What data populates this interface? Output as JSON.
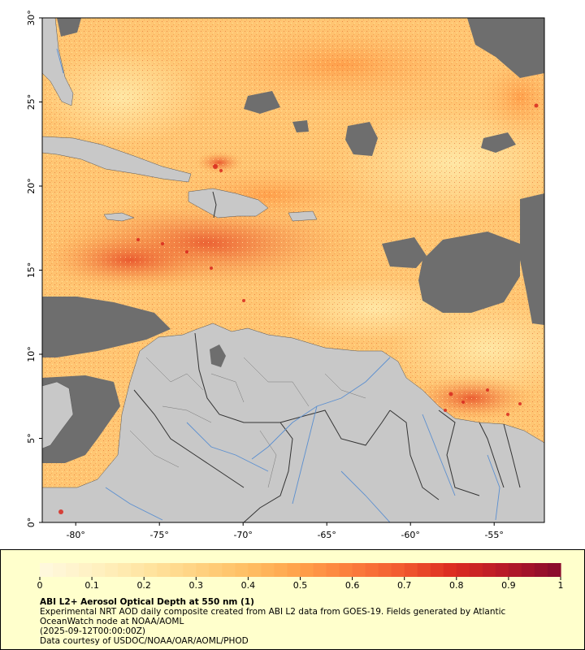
{
  "map": {
    "lat_min": 0,
    "lat_max": 30,
    "lon_min": -82,
    "lon_max": -52,
    "lat_ticks": [
      {
        "value": 0,
        "label": "0°"
      },
      {
        "value": 5,
        "label": "5°"
      },
      {
        "value": 10,
        "label": "10°"
      },
      {
        "value": 15,
        "label": "15°"
      },
      {
        "value": 20,
        "label": "20°"
      },
      {
        "value": 25,
        "label": "25°"
      },
      {
        "value": 30,
        "label": "30°"
      }
    ],
    "lon_ticks": [
      {
        "value": -80,
        "label": "-80°"
      },
      {
        "value": -75,
        "label": "-75°"
      },
      {
        "value": -70,
        "label": "-70°"
      },
      {
        "value": -65,
        "label": "-65°"
      },
      {
        "value": -60,
        "label": "-60°"
      },
      {
        "value": -55,
        "label": "-55°"
      }
    ],
    "colors": {
      "land": "#c8c8c8",
      "no_data": "#6e6e6e",
      "borders": "#505050",
      "rivers": "#5b8fd0",
      "aod_low": "#ffe49a",
      "aod_mid": "#ffb45a",
      "aod_high": "#e03a1e"
    }
  },
  "colorbar": {
    "min": 0,
    "max": 1,
    "tick_labels": [
      "0",
      "0.1",
      "0.2",
      "0.3",
      "0.4",
      "0.5",
      "0.6",
      "0.7",
      "0.8",
      "0.9",
      "1"
    ],
    "colors": [
      "#fff8dc",
      "#fff0c0",
      "#ffe4a0",
      "#ffd280",
      "#ffbe62",
      "#ffa04a",
      "#fc7e3c",
      "#f25a30",
      "#dc2c20",
      "#b81a28",
      "#8c0c2c"
    ]
  },
  "caption": {
    "title": "ABI L2+ Aerosol Optical Depth at 550 nm (1)",
    "description": "Experimental NRT AOD daily composite created from ABI L2 data from GOES-19. Fields generated by Atlantic OceanWatch node at NOAA/AOML",
    "date": "(2025-09-12T00:00:00Z)",
    "credit": "Data courtesy of USDOC/NOAA/OAR/AOML/PHOD"
  }
}
